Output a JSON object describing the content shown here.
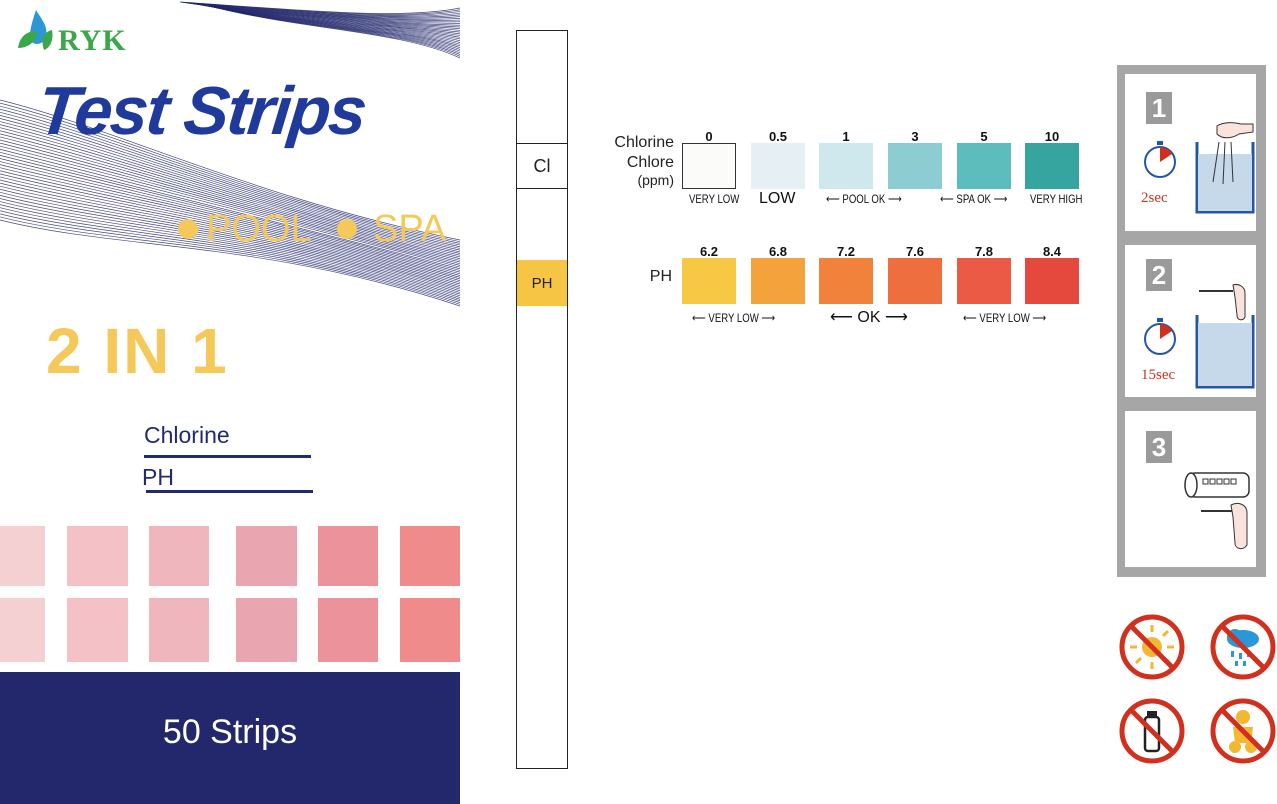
{
  "package": {
    "brand": "RYK",
    "title": "Test Strips",
    "uses": [
      "POOL",
      "SPA"
    ],
    "combo": "2 IN 1",
    "params": [
      "Chlorine",
      "PH"
    ],
    "count_label": "50 Strips",
    "pink_squares": [
      [
        "#f5d0d3",
        "#f4c2c6",
        "#efb6bd",
        "#e9a5b0",
        "#ec929a",
        "#ef8b8b"
      ],
      [
        "#f5d0d3",
        "#f4c2c6",
        "#efb6bd",
        "#e9a5b0",
        "#ec929a",
        "#ef8b8b"
      ]
    ]
  },
  "strip": {
    "pads": [
      "Cl",
      "PH"
    ]
  },
  "chart": {
    "chlorine": {
      "label_lines": [
        "Chlorine",
        "Chlore",
        "(ppm)"
      ],
      "values": [
        "0",
        "0.5",
        "1",
        "3",
        "5",
        "10"
      ],
      "colors": [
        "#fbfbfa",
        "#e6eff3",
        "#cfe8ee",
        "#8dcdd2",
        "#5cbdbc",
        "#36a49f"
      ],
      "notes": [
        "VERY LOW",
        "LOW",
        "⟵ POOL OK ⟶",
        "⟵ SPA OK ⟶",
        "VERY HIGH"
      ]
    },
    "ph": {
      "label": "PH",
      "values": [
        "6.2",
        "6.8",
        "7.2",
        "7.6",
        "7.8",
        "8.4"
      ],
      "colors": [
        "#f6c843",
        "#f4a23b",
        "#f0823c",
        "#ee6e40",
        "#ea5a44",
        "#e5483c"
      ],
      "notes": [
        "⟵ VERY LOW ⟶",
        "⟵  OK  ⟶",
        "⟵ VERY LOW ⟶"
      ]
    }
  },
  "steps": {
    "numbers": [
      "1",
      "2",
      "3"
    ],
    "times": [
      "2sec",
      "15sec"
    ],
    "icons": [
      "stopwatch-icon",
      "beaker-dip-icon",
      "stopwatch-icon",
      "beaker-swirl-icon",
      "container-compare-icon"
    ]
  },
  "warnings": [
    "no-sunlight-icon",
    "no-moisture-icon",
    "no-container-swap-icon",
    "keep-from-children-icon"
  ],
  "colors": {
    "navy": "#22286b",
    "title_blue": "#1f3a9a",
    "accent_yellow": "#f5c85a",
    "logo_green": "#3aa84a",
    "warn_red": "#d0301d"
  }
}
